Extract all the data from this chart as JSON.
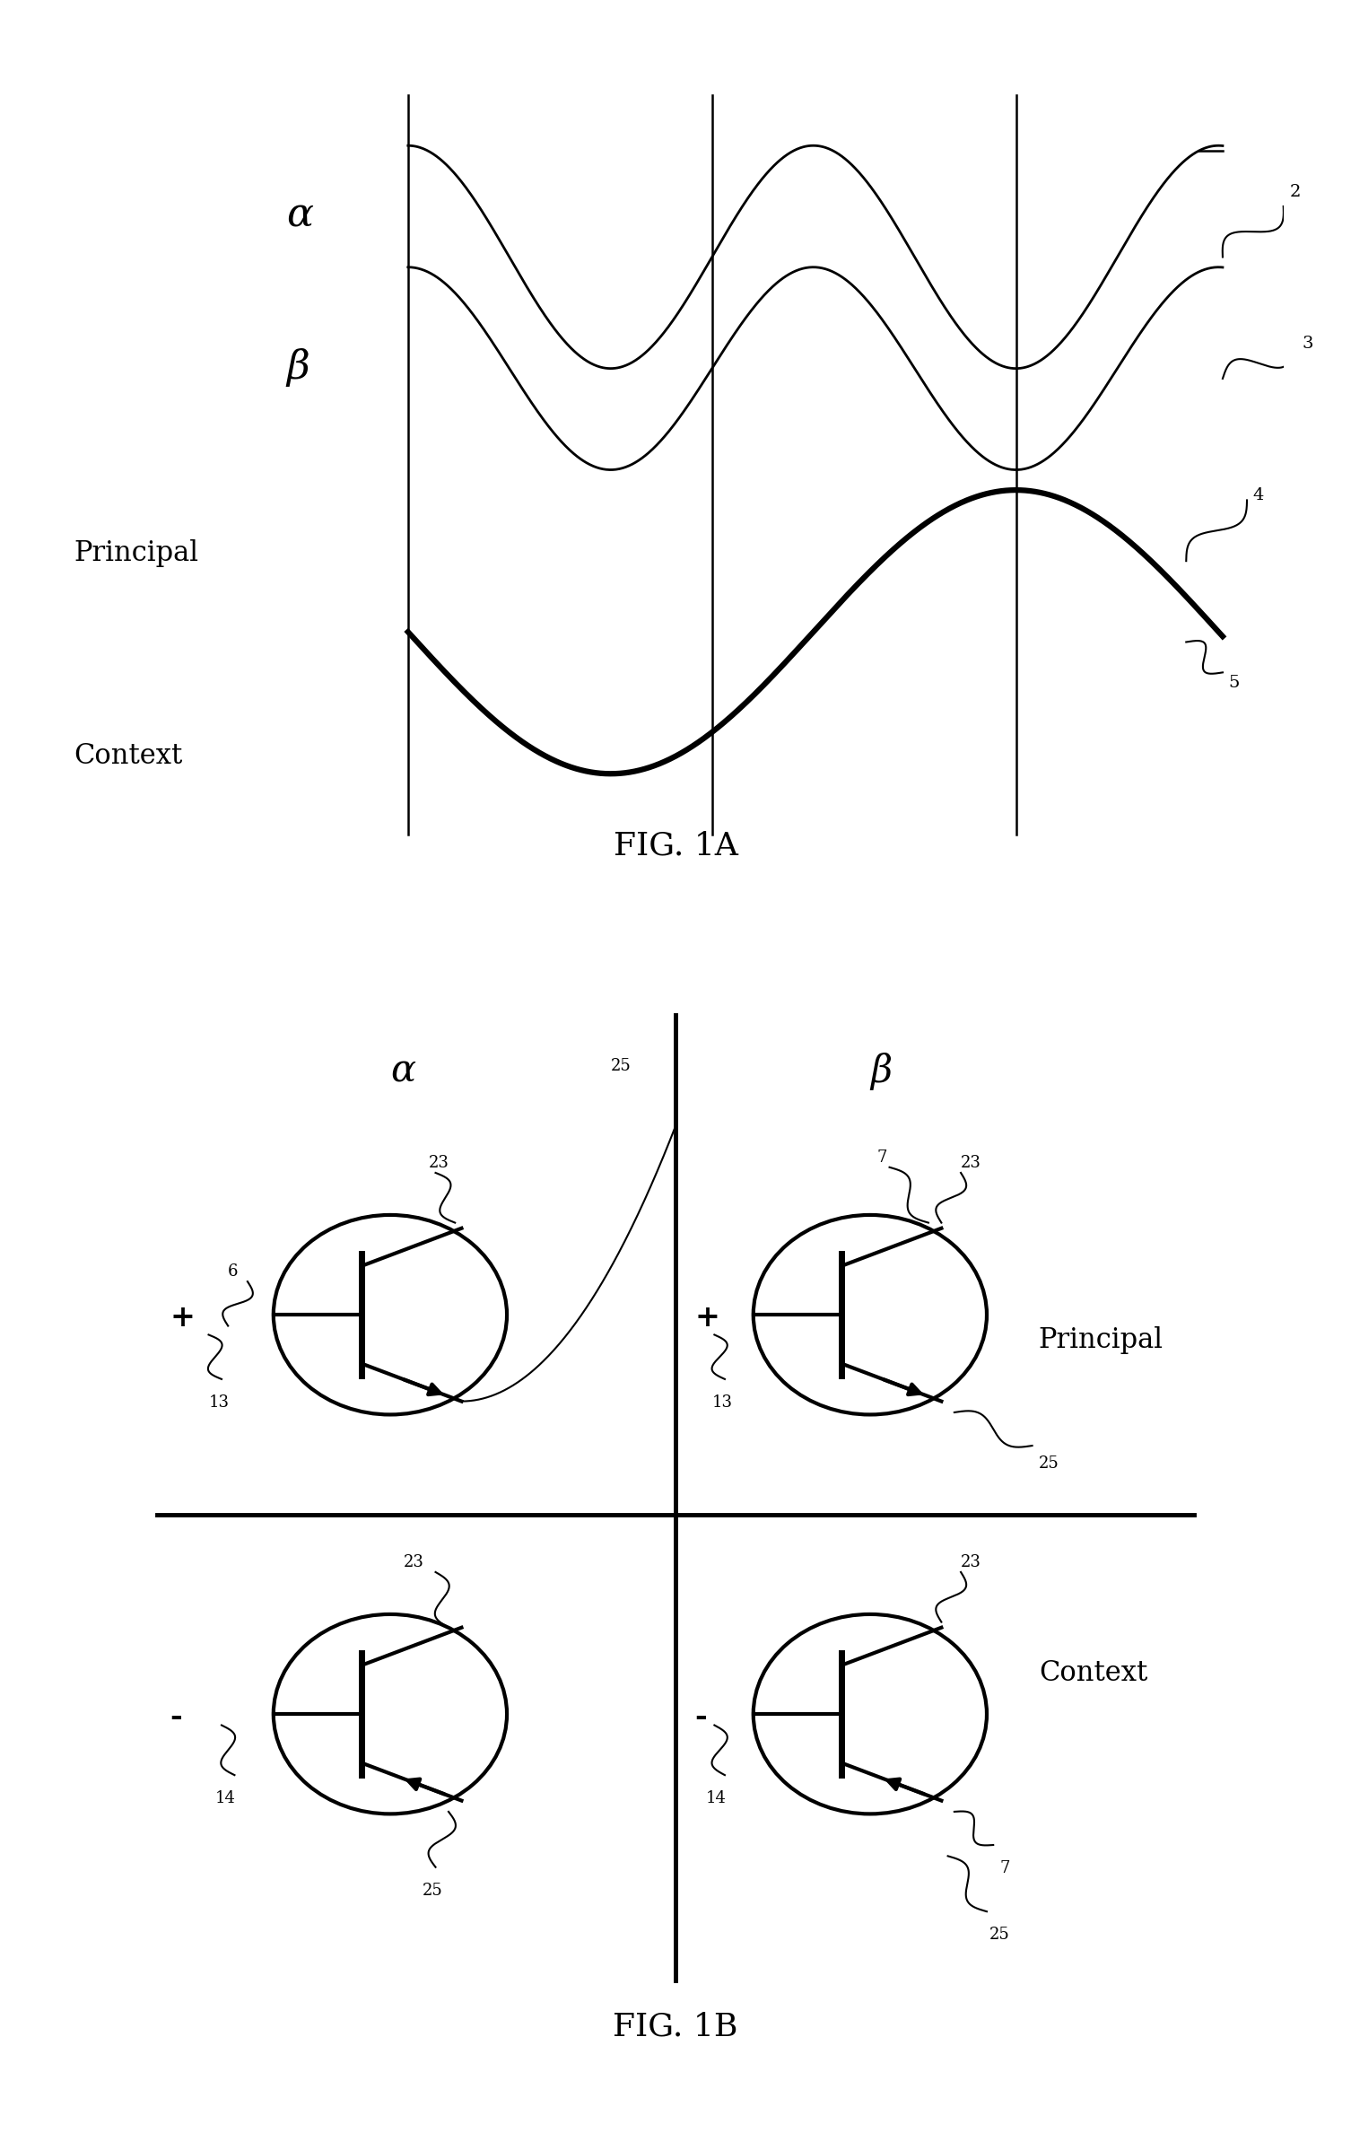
{
  "fig_width": 15.06,
  "fig_height": 23.77,
  "bg_color": "#ffffff",
  "fig1a_title": "FIG. 1A",
  "fig1b_title": "FIG. 1B",
  "alpha_label": "α",
  "beta_label": "β",
  "principal_label": "Principal",
  "context_label": "Context",
  "plus_label": "+",
  "minus_label": "-",
  "lbl_2": "2",
  "lbl_3": "3",
  "lbl_4": "4",
  "lbl_5": "5",
  "lbl_6": "6",
  "lbl_7": "7",
  "lbl_13": "13",
  "lbl_14": "14",
  "lbl_23": "23",
  "lbl_25": "25"
}
